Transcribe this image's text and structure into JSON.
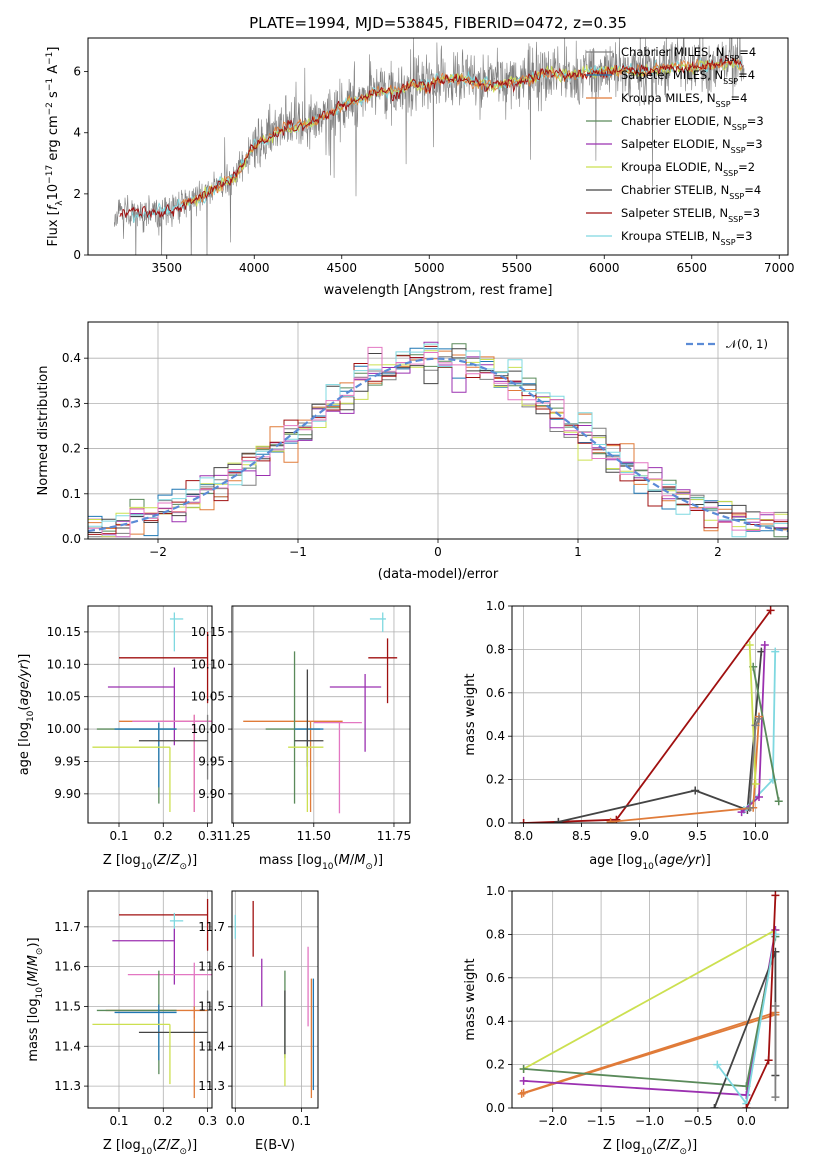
{
  "colors": {
    "chabrier_miles": "#7f7f7f",
    "salpeter_miles": "#1f77b4",
    "kroupa_miles": "#e07b39",
    "chabrier_elodie": "#5a8a5a",
    "salpeter_elodie": "#9b30b0",
    "kroupa_elodie": "#cce050",
    "chabrier_stelib": "#444444",
    "salpeter_stelib": "#a01010",
    "kroupa_stelib": "#7fd8e0",
    "gauss": "#5b8bd6",
    "pink": "#e377c2"
  },
  "chart_data": [
    {
      "type": "line",
      "id": "spectrum",
      "title": "PLATE=1994, MJD=53845, FIBERID=0472, z=0.35",
      "xlabel": "wavelength [Angstrom, rest frame]",
      "ylabel": "Flux [f_λ10^-17 erg cm^-2 s^-1 A^-1]",
      "xlim": [
        3050,
        7050
      ],
      "ylim": [
        0,
        7.1
      ],
      "xticks": [
        3500,
        4000,
        4500,
        5000,
        5500,
        6000,
        6500,
        7000
      ],
      "yticks": [
        0,
        2,
        4,
        6
      ],
      "continuum": {
        "x": [
          3200,
          3300,
          3400,
          3500,
          3600,
          3700,
          3800,
          3900,
          4000,
          4100,
          4200,
          4300,
          4400,
          4500,
          4600,
          4700,
          4800,
          4900,
          5000,
          5100,
          5200,
          5300,
          5400,
          5500,
          5600,
          5700,
          5800,
          5900,
          6000,
          6100,
          6200,
          6300,
          6400,
          6500,
          6600,
          6700,
          6800
        ],
        "y": [
          1.25,
          1.4,
          1.35,
          1.45,
          1.7,
          1.9,
          2.3,
          2.6,
          3.6,
          3.9,
          4.2,
          4.25,
          4.5,
          4.9,
          5.1,
          5.4,
          5.3,
          5.6,
          5.5,
          5.8,
          5.75,
          5.6,
          5.55,
          5.7,
          5.8,
          5.95,
          5.85,
          5.95,
          6.0,
          6.05,
          6.0,
          6.1,
          6.2,
          6.1,
          6.2,
          6.3,
          6.25
        ]
      },
      "legend": [
        {
          "label": "Chabrier MILES, N",
          "sub": "SSP",
          "tail": "=4",
          "color": "#7f7f7f"
        },
        {
          "label": "Salpeter MILES, N",
          "sub": "SSP",
          "tail": "=4",
          "color": "#1f77b4"
        },
        {
          "label": "Kroupa MILES, N",
          "sub": "SSP",
          "tail": "=4",
          "color": "#e07b39"
        },
        {
          "label": "Chabrier ELODIE, N",
          "sub": "SSP",
          "tail": "=3",
          "color": "#5a8a5a"
        },
        {
          "label": "Salpeter ELODIE, N",
          "sub": "SSP",
          "tail": "=3",
          "color": "#9b30b0"
        },
        {
          "label": "Kroupa ELODIE, N",
          "sub": "SSP",
          "tail": "=2",
          "color": "#cce050"
        },
        {
          "label": "Chabrier STELIB, N",
          "sub": "SSP",
          "tail": "=4",
          "color": "#444444"
        },
        {
          "label": "Salpeter STELIB, N",
          "sub": "SSP",
          "tail": "=3",
          "color": "#a01010"
        },
        {
          "label": "Kroupa STELIB, N",
          "sub": "SSP",
          "tail": "=3",
          "color": "#7fd8e0"
        }
      ]
    },
    {
      "type": "line",
      "id": "residuals",
      "xlabel": "(data-model)/error",
      "ylabel": "Normed distribution",
      "xlim": [
        -2.5,
        2.5
      ],
      "ylim": [
        0,
        0.48
      ],
      "xticks": [
        -2,
        -1,
        0,
        1,
        2
      ],
      "yticks": [
        0.0,
        0.1,
        0.2,
        0.3,
        0.4
      ],
      "gauss_label": "𝒩(0, 1)",
      "bin_width": 0.1
    },
    {
      "type": "scatter",
      "id": "age_vs_Z",
      "xlabel": "Z [log10(Z/Z⊙)]",
      "ylabel": "age  [log10(age/yr)]",
      "xlim": [
        0.03,
        0.31
      ],
      "ylim": [
        9.855,
        10.19
      ],
      "xticks": [
        0.1,
        0.2,
        0.3
      ],
      "xtick_labels": [
        "0.1",
        "0.2",
        "0.3"
      ],
      "yticks": [
        9.9,
        9.95,
        10.0,
        10.05,
        10.1,
        10.15
      ],
      "points": [
        {
          "x": 0.3,
          "y": 10.11,
          "xerr": [
            0.2,
            0.0
          ],
          "yerr": [
            0.07,
            0.04
          ],
          "color": "#a01010"
        },
        {
          "x": 0.225,
          "y": 10.17,
          "xerr": [
            0.01,
            0.02
          ],
          "yerr": [
            0.05,
            0.01
          ],
          "color": "#7fd8e0"
        },
        {
          "x": 0.225,
          "y": 10.065,
          "xerr": [
            0.15,
            0.0
          ],
          "yerr": [
            0.09,
            0.03
          ],
          "color": "#9b30b0"
        },
        {
          "x": 0.27,
          "y": 10.012,
          "xerr": [
            0.17,
            0.04
          ],
          "yerr": [
            0.14,
            0.01
          ],
          "color": "#e07b39"
        },
        {
          "x": 0.27,
          "y": 10.012,
          "xerr": [
            0.14,
            0.04
          ],
          "yerr": [
            0.14,
            0.01
          ],
          "color": "#e377c2"
        },
        {
          "x": 0.3,
          "y": 10.012,
          "xerr": [
            0.0,
            0.0
          ],
          "yerr": [
            0.09,
            0.01
          ],
          "color": "#7f7f7f"
        },
        {
          "x": 0.19,
          "y": 10.0,
          "xerr": [
            0.14,
            0.04
          ],
          "yerr": [
            0.115,
            0.01
          ],
          "color": "#5a8a5a"
        },
        {
          "x": 0.19,
          "y": 10.0,
          "xerr": [
            0.1,
            0.04
          ],
          "yerr": [
            0.09,
            0.01
          ],
          "color": "#1f77b4"
        },
        {
          "x": 0.245,
          "y": 9.982,
          "xerr": [
            0.1,
            0.055
          ],
          "yerr": [
            0.0,
            0.0
          ],
          "color": "#444444"
        },
        {
          "x": 0.215,
          "y": 9.972,
          "xerr": [
            0.175,
            0.0
          ],
          "yerr": [
            0.1,
            0.0
          ],
          "color": "#cce050"
        }
      ]
    },
    {
      "type": "scatter",
      "id": "age_vs_mass",
      "xlabel": "mass [log10(M/M⊙)]",
      "ylabel": "",
      "xlim": [
        11.245,
        11.8
      ],
      "ylim": [
        9.855,
        10.19
      ],
      "xticks": [
        11.25,
        11.5,
        11.75
      ],
      "xtick_labels": [
        "11.25",
        "11.50",
        "11.75"
      ],
      "yticks": [
        9.9,
        9.95,
        10.0,
        10.05,
        10.1,
        10.15
      ],
      "points": [
        {
          "x": 11.73,
          "y": 10.11,
          "xerr": [
            0.06,
            0.03
          ],
          "yerr": [
            0.07,
            0.03
          ],
          "color": "#a01010"
        },
        {
          "x": 11.715,
          "y": 10.17,
          "xerr": [
            0.04,
            0.01
          ],
          "yerr": [
            0.02,
            0.01
          ],
          "color": "#7fd8e0"
        },
        {
          "x": 11.66,
          "y": 10.065,
          "xerr": [
            0.11,
            0.05
          ],
          "yerr": [
            0.1,
            0.02
          ],
          "color": "#9b30b0"
        },
        {
          "x": 11.49,
          "y": 10.012,
          "xerr": [
            0.21,
            0.1
          ],
          "yerr": [
            0.14,
            0.0
          ],
          "color": "#e07b39"
        },
        {
          "x": 11.58,
          "y": 10.01,
          "xerr": [
            0.08,
            0.07
          ],
          "yerr": [
            0.14,
            0.0
          ],
          "color": "#e377c2"
        },
        {
          "x": 11.44,
          "y": 10.0,
          "xerr": [
            0.09,
            0.08
          ],
          "yerr": [
            0.115,
            0.12
          ],
          "color": "#5a8a5a"
        },
        {
          "x": 11.48,
          "y": 10.0,
          "xerr": [
            0.04,
            0.05
          ],
          "yerr": [
            0.1,
            0.0
          ],
          "color": "#1f77b4"
        },
        {
          "x": 11.48,
          "y": 9.982,
          "xerr": [
            0.04,
            0.05
          ],
          "yerr": [
            0.04,
            0.11
          ],
          "color": "#444444"
        },
        {
          "x": 11.48,
          "y": 9.972,
          "xerr": [
            0.06,
            0.05
          ],
          "yerr": [
            0.1,
            0.0
          ],
          "color": "#cce050"
        }
      ]
    },
    {
      "type": "line",
      "id": "mw_vs_age",
      "xlabel": "age  [log10(age/yr)]",
      "ylabel": "mass weight",
      "xlim": [
        7.9,
        10.28
      ],
      "ylim": [
        0,
        1.0
      ],
      "xticks": [
        8.0,
        8.5,
        9.0,
        9.5,
        10.0
      ],
      "xtick_labels": [
        "8.0",
        "8.5",
        "9.0",
        "9.5",
        "10.0"
      ],
      "yticks": [
        0.0,
        0.2,
        0.4,
        0.6,
        0.8,
        1.0
      ],
      "series": [
        {
          "color": "#a01010",
          "x": [
            8.0,
            8.8,
            10.13
          ],
          "y": [
            0.0,
            0.015,
            0.98
          ]
        },
        {
          "color": "#444444",
          "x": [
            8.3,
            9.48,
            9.93,
            10.05
          ],
          "y": [
            0.005,
            0.15,
            0.06,
            0.79
          ]
        },
        {
          "color": "#7fd8e0",
          "x": [
            9.9,
            10.15,
            10.17
          ],
          "y": [
            0.06,
            0.2,
            0.79
          ]
        },
        {
          "color": "#9b30b0",
          "x": [
            9.88,
            10.03,
            10.08
          ],
          "y": [
            0.05,
            0.12,
            0.82
          ]
        },
        {
          "color": "#5a8a5a",
          "x": [
            9.98,
            10.2
          ],
          "y": [
            0.72,
            0.1
          ]
        },
        {
          "color": "#e07b39",
          "x": [
            8.75,
            9.98,
            10.03
          ],
          "y": [
            0.005,
            0.07,
            0.49
          ]
        },
        {
          "color": "#cce050",
          "x": [
            9.95,
            10.0
          ],
          "y": [
            0.82,
            0.18
          ]
        },
        {
          "color": "#7f7f7f",
          "x": [
            9.95,
            10.0,
            10.03
          ],
          "y": [
            0.07,
            0.45,
            0.48
          ]
        }
      ]
    },
    {
      "type": "scatter",
      "id": "mass_vs_Z",
      "xlabel": "Z [log10(Z/Z⊙)]",
      "ylabel": "mass [log10(M/M⊙)]",
      "xlim": [
        0.03,
        0.31
      ],
      "ylim": [
        11.245,
        11.79
      ],
      "xticks": [
        0.1,
        0.2,
        0.3
      ],
      "xtick_labels": [
        "0.1",
        "0.2",
        "0.3"
      ],
      "yticks": [
        11.3,
        11.4,
        11.5,
        11.6,
        11.7
      ],
      "points": [
        {
          "x": 0.3,
          "y": 11.73,
          "xerr": [
            0.2,
            0.0
          ],
          "yerr": [
            0.09,
            0.04
          ],
          "color": "#a01010"
        },
        {
          "x": 0.225,
          "y": 11.715,
          "xerr": [
            0.01,
            0.02
          ],
          "yerr": [
            0.05,
            0.02
          ],
          "color": "#7fd8e0"
        },
        {
          "x": 0.225,
          "y": 11.665,
          "xerr": [
            0.14,
            0.0
          ],
          "yerr": [
            0.11,
            0.03
          ],
          "color": "#9b30b0"
        },
        {
          "x": 0.27,
          "y": 11.58,
          "xerr": [
            0.15,
            0.04
          ],
          "yerr": [
            0.11,
            0.03
          ],
          "color": "#e377c2"
        },
        {
          "x": 0.3,
          "y": 11.51,
          "xerr": [
            0.0,
            0.0
          ],
          "yerr": [
            0.2,
            0.03
          ],
          "color": "#7f7f7f"
        },
        {
          "x": 0.27,
          "y": 11.49,
          "xerr": [
            0.2,
            0.03
          ],
          "yerr": [
            0.22,
            0.01
          ],
          "color": "#e07b39"
        },
        {
          "x": 0.19,
          "y": 11.49,
          "xerr": [
            0.14,
            0.04
          ],
          "yerr": [
            0.16,
            0.1
          ],
          "color": "#5a8a5a"
        },
        {
          "x": 0.19,
          "y": 11.485,
          "xerr": [
            0.1,
            0.04
          ],
          "yerr": [
            0.12,
            0.02
          ],
          "color": "#1f77b4"
        },
        {
          "x": 0.245,
          "y": 11.435,
          "xerr": [
            0.1,
            0.055
          ],
          "yerr": [
            0.0,
            0.0
          ],
          "color": "#444444"
        },
        {
          "x": 0.215,
          "y": 11.455,
          "xerr": [
            0.175,
            0.0
          ],
          "yerr": [
            0.15,
            0.0
          ],
          "color": "#cce050"
        }
      ]
    },
    {
      "type": "scatter",
      "id": "mass_vs_ebv",
      "xlabel": "E(B-V)",
      "ylabel": "",
      "xlim": [
        -0.005,
        0.125
      ],
      "ylim": [
        11.245,
        11.79
      ],
      "xticks": [
        0.0,
        0.1
      ],
      "xtick_labels": [
        "0.0",
        "0.1"
      ],
      "yticks": [
        11.3,
        11.4,
        11.5,
        11.6,
        11.7
      ],
      "points": [
        {
          "x": 0.0,
          "y": 11.7,
          "yerr": [
            0.03,
            0.03
          ],
          "color": "#7fd8e0"
        },
        {
          "x": 0.027,
          "y": 11.695,
          "yerr": [
            0.07,
            0.07
          ],
          "color": "#a01010"
        },
        {
          "x": 0.04,
          "y": 11.57,
          "yerr": [
            0.07,
            0.05
          ],
          "color": "#9b30b0"
        },
        {
          "x": 0.075,
          "y": 11.48,
          "yerr": [
            0.11,
            0.11
          ],
          "color": "#5a8a5a"
        },
        {
          "x": 0.075,
          "y": 11.46,
          "yerr": [
            0.08,
            0.08
          ],
          "color": "#444444"
        },
        {
          "x": 0.075,
          "y": 11.34,
          "yerr": [
            0.04,
            0.04
          ],
          "color": "#cce050"
        },
        {
          "x": 0.11,
          "y": 11.55,
          "yerr": [
            0.1,
            0.1
          ],
          "color": "#e377c2"
        },
        {
          "x": 0.115,
          "y": 11.42,
          "yerr": [
            0.15,
            0.15
          ],
          "color": "#e07b39"
        },
        {
          "x": 0.118,
          "y": 11.43,
          "yerr": [
            0.14,
            0.14
          ],
          "color": "#1f77b4"
        }
      ]
    },
    {
      "type": "line",
      "id": "mw_vs_Z",
      "xlabel": "Z [log10(Z/Z⊙)]",
      "ylabel": "mass weight",
      "xlim": [
        -2.42,
        0.43
      ],
      "ylim": [
        0,
        1.0
      ],
      "xticks": [
        -2.0,
        -1.5,
        -1.0,
        -0.5,
        0.0
      ],
      "xtick_labels": [
        "−2.0",
        "−1.5",
        "−1.0",
        "−0.5",
        "0.0"
      ],
      "yticks": [
        0.0,
        0.2,
        0.4,
        0.6,
        0.8,
        1.0
      ],
      "series": [
        {
          "color": "#cce050",
          "x": [
            -2.3,
            0.3
          ],
          "y": [
            0.18,
            0.82
          ]
        },
        {
          "color": "#e07b39",
          "x": [
            -2.3,
            0.3
          ],
          "y": [
            0.07,
            0.44
          ]
        },
        {
          "color": "#e07b39",
          "x": [
            -2.32,
            0.3
          ],
          "y": [
            0.065,
            0.43
          ]
        },
        {
          "color": "#9b30b0",
          "x": [
            -2.3,
            0.0,
            0.3
          ],
          "y": [
            0.125,
            0.06,
            0.82
          ]
        },
        {
          "color": "#5a8a5a",
          "x": [
            -2.3,
            0.0,
            0.3
          ],
          "y": [
            0.18,
            0.1,
            0.79
          ]
        },
        {
          "color": "#444444",
          "x": [
            -0.33,
            0.3,
            0.3
          ],
          "y": [
            0.0,
            0.72,
            0.15
          ]
        },
        {
          "color": "#7fd8e0",
          "x": [
            -0.3,
            0.0,
            0.3
          ],
          "y": [
            0.2,
            0.02,
            0.8
          ]
        },
        {
          "color": "#a01010",
          "x": [
            0.0,
            0.23,
            0.3
          ],
          "y": [
            0.0,
            0.22,
            0.98
          ]
        },
        {
          "color": "#7f7f7f",
          "x": [
            0.3,
            0.3
          ],
          "y": [
            0.05,
            0.47
          ]
        }
      ]
    }
  ]
}
